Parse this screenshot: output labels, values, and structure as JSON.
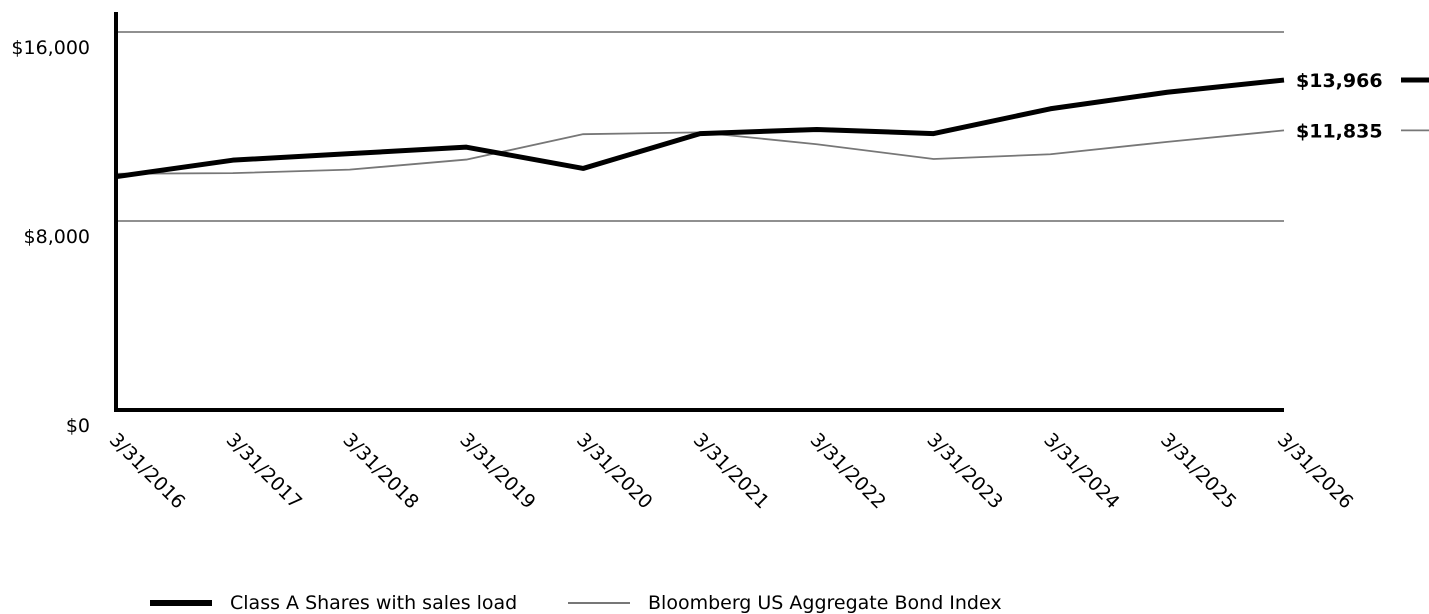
{
  "chart_data": {
    "type": "line",
    "title": "",
    "xlabel": "",
    "ylabel": "",
    "categories": [
      "3/31/2016",
      "3/31/2017",
      "3/31/2018",
      "3/31/2019",
      "3/31/2020",
      "3/31/2021",
      "3/31/2022",
      "3/31/2023",
      "3/31/2024",
      "3/31/2025",
      "3/31/2026"
    ],
    "ylim": [
      0,
      16000
    ],
    "y_ticks": [
      {
        "value": 0,
        "label": "$0"
      },
      {
        "value": 8000,
        "label": "$8,000"
      },
      {
        "value": 16000,
        "label": "$16,000"
      }
    ],
    "grid": "horizontal",
    "legend_position": "bottom",
    "series": [
      {
        "name": "Class A Shares with sales load",
        "values": [
          9875,
          10575,
          10850,
          11125,
          10225,
          11700,
          11875,
          11700,
          12750,
          13450,
          13966
        ],
        "end_label": "$13,966",
        "color": "#000000",
        "weight": "thick"
      },
      {
        "name": "Bloomberg US Aggregate Bond Index",
        "values": [
          10000,
          10025,
          10175,
          10600,
          11675,
          11750,
          11250,
          10625,
          10825,
          11350,
          11835
        ],
        "end_label": "$11,835",
        "color": "#777777",
        "weight": "thin"
      }
    ]
  }
}
